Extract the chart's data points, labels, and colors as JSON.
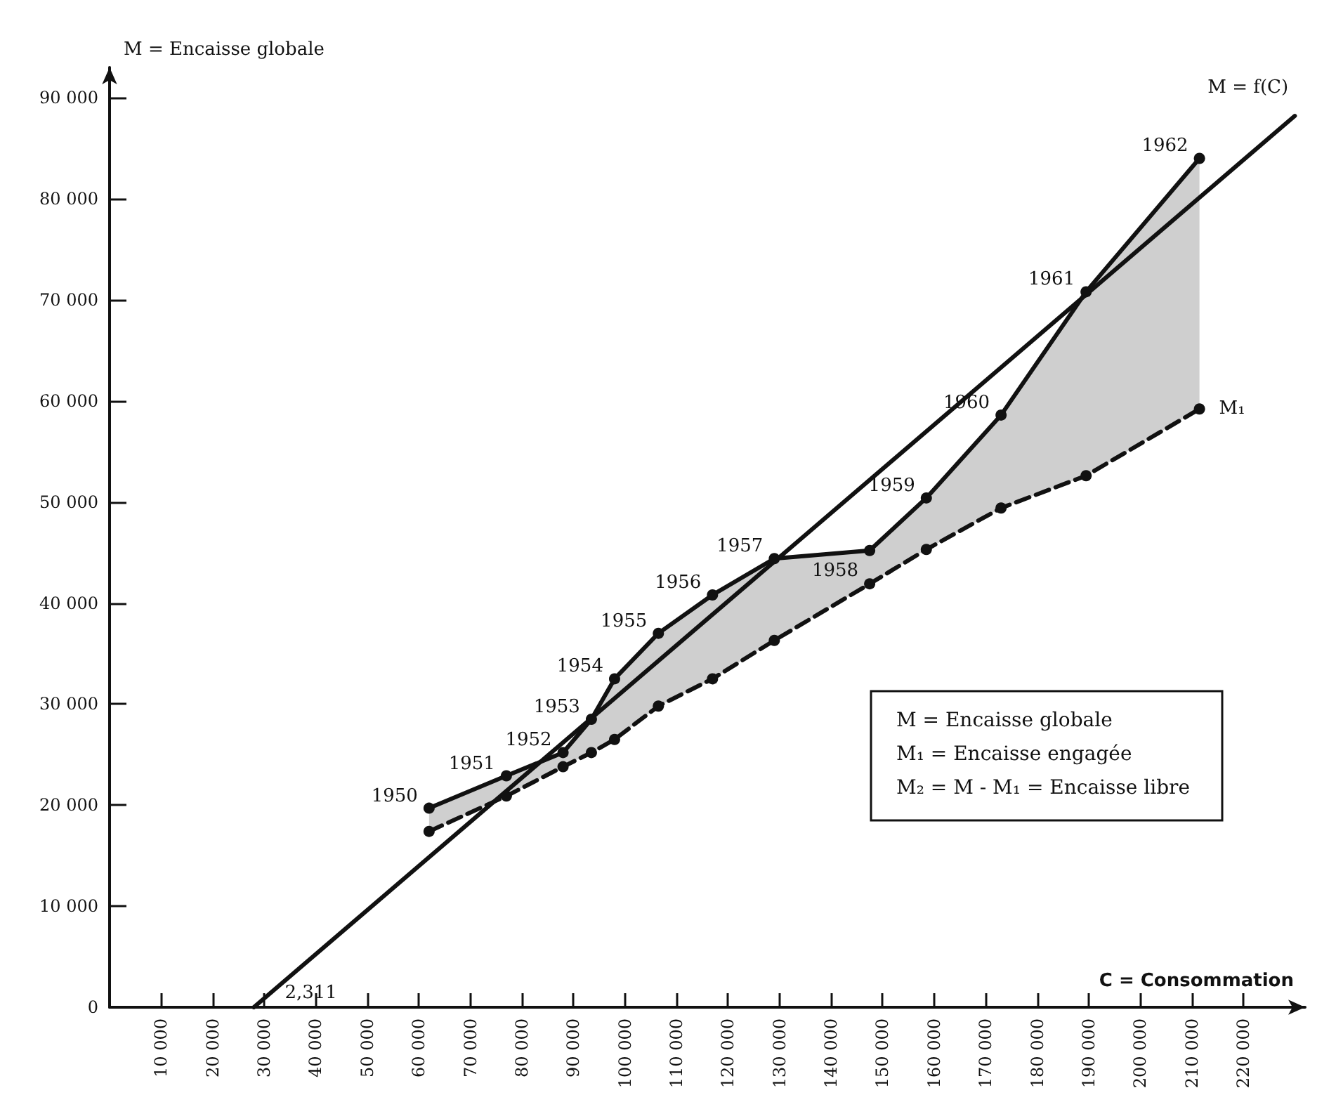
{
  "chart_data": {
    "type": "line",
    "xlabel": "C = Consommation",
    "ylabel": "M = Encaisse globale",
    "xlim": [
      0,
      232000
    ],
    "ylim": [
      0,
      93000
    ],
    "xticks": [
      {
        "value": 10000,
        "label": "10 000"
      },
      {
        "value": 20000,
        "label": "20 000"
      },
      {
        "value": 30000,
        "label": "30 000"
      },
      {
        "value": 40000,
        "label": "40 000"
      },
      {
        "value": 50000,
        "label": "50 000"
      },
      {
        "value": 60000,
        "label": "60 000"
      },
      {
        "value": 70000,
        "label": "70 000"
      },
      {
        "value": 80000,
        "label": "80 000"
      },
      {
        "value": 90000,
        "label": "90 000"
      },
      {
        "value": 100000,
        "label": "100 000"
      },
      {
        "value": 110000,
        "label": "110 000"
      },
      {
        "value": 120000,
        "label": "120 000"
      },
      {
        "value": 130000,
        "label": "130 000"
      },
      {
        "value": 140000,
        "label": "140 000"
      },
      {
        "value": 150000,
        "label": "150 000"
      },
      {
        "value": 160000,
        "label": "160 000"
      },
      {
        "value": 170000,
        "label": "170 000"
      },
      {
        "value": 180000,
        "label": "180 000"
      },
      {
        "value": 190000,
        "label": "190 000"
      },
      {
        "value": 200000,
        "label": "200 000"
      },
      {
        "value": 210000,
        "label": "210 000"
      },
      {
        "value": 220000,
        "label": "220 000"
      }
    ],
    "yticks": [
      0,
      {
        "value": 10000,
        "label": "10 000"
      },
      {
        "value": 20000,
        "label": "20 000"
      },
      {
        "value": 30000,
        "label": "30 000"
      },
      {
        "value": 40000,
        "label": "40 000"
      },
      {
        "value": 50000,
        "label": "50 000"
      },
      {
        "value": 60000,
        "label": "60 000"
      },
      {
        "value": 70000,
        "label": "70 000"
      },
      {
        "value": 80000,
        "label": "80 000"
      },
      {
        "value": 90000,
        "label": "90 000"
      }
    ],
    "grid": false,
    "legend": false,
    "series": [
      {
        "color": "#111111",
        "marker": "circle",
        "line_style": "solid",
        "x": [
          62000,
          77000,
          88000,
          93500,
          98000,
          106500,
          117000,
          129000,
          147500,
          158500,
          173000,
          189500,
          211500
        ],
        "values": [
          19700,
          22900,
          25200,
          28500,
          32500,
          37000,
          40800,
          44400,
          45200,
          50400,
          58600,
          70800,
          84000
        ]
      },
      {
        "name": "M₁",
        "color": "#111111",
        "marker": "circle",
        "line_style": "dashed",
        "x": [
          62000,
          77000,
          88000,
          93500,
          98000,
          106500,
          117000,
          129000,
          147500,
          158500,
          173000,
          189500,
          211500
        ],
        "values": [
          17400,
          20900,
          23800,
          25200,
          26500,
          29800,
          32500,
          36300,
          41900,
          45300,
          49400,
          52600,
          59200
        ],
        "lower": [
          17400,
          20900,
          23800,
          25200,
          26500,
          29800,
          32500,
          36300,
          41900,
          45300,
          49400,
          52600,
          59200
        ],
        "upper": [
          19700,
          22900,
          25200,
          28500,
          32500,
          37000,
          40800,
          44400,
          45200,
          50400,
          58600,
          70800,
          84000
        ]
      },
      {
        "name": "M = f(C)",
        "color": "#111111",
        "marker": "none",
        "line_style": "solid",
        "x": [
          28000,
          230000
        ],
        "values": [
          0,
          88200
        ]
      }
    ],
    "annotations": [
      {
        "text": "1950",
        "x": 62000,
        "y": 19700
      },
      {
        "text": "1951",
        "x": 77000,
        "y": 22900
      },
      {
        "text": "1952",
        "x": 88000,
        "y": 25200
      },
      {
        "text": "1953",
        "x": 93500,
        "y": 28500
      },
      {
        "text": "1954",
        "x": 98000,
        "y": 32500
      },
      {
        "text": "1955",
        "x": 106500,
        "y": 37000
      },
      {
        "text": "1956",
        "x": 117000,
        "y": 40800
      },
      {
        "text": "1957",
        "x": 129000,
        "y": 44400
      },
      {
        "text": "1958",
        "x": 147500,
        "y": 45200
      },
      {
        "text": "1959",
        "x": 158500,
        "y": 50400
      },
      {
        "text": "1960",
        "x": 173000,
        "y": 58600
      },
      {
        "text": "1961",
        "x": 189500,
        "y": 70800
      },
      {
        "text": "1962",
        "x": 211500,
        "y": 84000
      },
      {
        "text": "2,311",
        "x": 28000,
        "y": 0
      },
      "M = Encaisse globale",
      "M₁ = Encaisse engagée",
      "M₂ = M - M₁ = Encaisse libre"
    ]
  }
}
